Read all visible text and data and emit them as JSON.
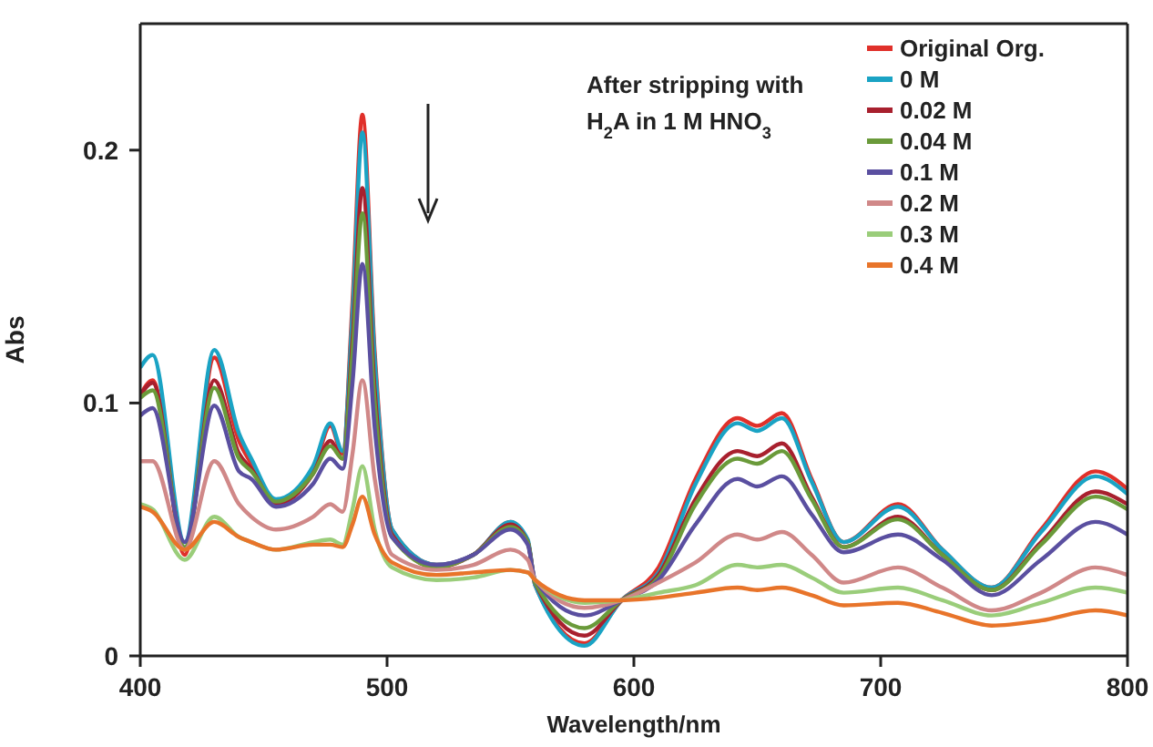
{
  "chart_data": {
    "type": "line",
    "xlabel": "Wavelength/nm",
    "ylabel": "Abs",
    "annotations": [
      "After stripping  with",
      "H$_{2}$A in 1 M HNO$_{3}$"
    ],
    "x": [
      400,
      405,
      418,
      430,
      440,
      445,
      455,
      470,
      477,
      482,
      486,
      490,
      495,
      502,
      520,
      535,
      550,
      557,
      560,
      580,
      595,
      610,
      625,
      642,
      650,
      660,
      672,
      685,
      707,
      725,
      745,
      765,
      787,
      800
    ],
    "series": [
      {
        "name": "Original Org.",
        "color": "#e0302a",
        "values": [
          0.103,
          0.109,
          0.04,
          0.118,
          0.085,
          0.076,
          0.061,
          0.073,
          0.091,
          0.08,
          0.14,
          0.214,
          0.12,
          0.05,
          0.036,
          0.04,
          0.053,
          0.045,
          0.028,
          0.005,
          0.022,
          0.035,
          0.07,
          0.094,
          0.091,
          0.096,
          0.07,
          0.045,
          0.06,
          0.042,
          0.027,
          0.05,
          0.073,
          0.066
        ]
      },
      {
        "name": "0  M",
        "color": "#1aa3c4",
        "values": [
          0.114,
          0.119,
          0.045,
          0.121,
          0.088,
          0.078,
          0.062,
          0.075,
          0.092,
          0.081,
          0.135,
          0.207,
          0.117,
          0.05,
          0.036,
          0.04,
          0.053,
          0.046,
          0.028,
          0.004,
          0.022,
          0.033,
          0.068,
          0.092,
          0.089,
          0.094,
          0.069,
          0.045,
          0.059,
          0.042,
          0.027,
          0.049,
          0.071,
          0.064
        ]
      },
      {
        "name": "0.02 M",
        "color": "#a8202e",
        "values": [
          0.103,
          0.108,
          0.042,
          0.109,
          0.08,
          0.074,
          0.06,
          0.072,
          0.085,
          0.078,
          0.125,
          0.185,
          0.105,
          0.048,
          0.035,
          0.04,
          0.052,
          0.045,
          0.029,
          0.008,
          0.022,
          0.032,
          0.062,
          0.081,
          0.079,
          0.084,
          0.063,
          0.043,
          0.055,
          0.04,
          0.026,
          0.045,
          0.065,
          0.06
        ]
      },
      {
        "name": "0.04 M",
        "color": "#6a9a3a",
        "values": [
          0.102,
          0.105,
          0.043,
          0.106,
          0.078,
          0.073,
          0.061,
          0.072,
          0.083,
          0.078,
          0.12,
          0.175,
          0.1,
          0.047,
          0.035,
          0.04,
          0.051,
          0.045,
          0.029,
          0.011,
          0.022,
          0.031,
          0.06,
          0.078,
          0.076,
          0.081,
          0.062,
          0.043,
          0.054,
          0.04,
          0.026,
          0.044,
          0.063,
          0.058
        ]
      },
      {
        "name": "0.1 M",
        "color": "#5a4fa0",
        "values": [
          0.095,
          0.098,
          0.045,
          0.099,
          0.073,
          0.07,
          0.059,
          0.068,
          0.078,
          0.074,
          0.108,
          0.155,
          0.09,
          0.047,
          0.036,
          0.04,
          0.05,
          0.044,
          0.03,
          0.016,
          0.022,
          0.03,
          0.052,
          0.07,
          0.067,
          0.071,
          0.056,
          0.041,
          0.048,
          0.038,
          0.024,
          0.038,
          0.053,
          0.048
        ]
      },
      {
        "name": "0.2 M",
        "color": "#d08888",
        "values": [
          0.077,
          0.077,
          0.042,
          0.077,
          0.06,
          0.055,
          0.05,
          0.055,
          0.06,
          0.057,
          0.08,
          0.109,
          0.07,
          0.04,
          0.034,
          0.036,
          0.042,
          0.038,
          0.03,
          0.019,
          0.022,
          0.029,
          0.037,
          0.048,
          0.046,
          0.049,
          0.04,
          0.029,
          0.035,
          0.027,
          0.018,
          0.025,
          0.035,
          0.032
        ]
      },
      {
        "name": "0.3 M",
        "color": "#9acd7a",
        "values": [
          0.06,
          0.058,
          0.038,
          0.055,
          0.047,
          0.045,
          0.042,
          0.045,
          0.046,
          0.044,
          0.058,
          0.075,
          0.05,
          0.035,
          0.03,
          0.031,
          0.034,
          0.033,
          0.03,
          0.021,
          0.022,
          0.025,
          0.028,
          0.036,
          0.035,
          0.036,
          0.031,
          0.025,
          0.027,
          0.022,
          0.016,
          0.021,
          0.027,
          0.025
        ]
      },
      {
        "name": "0.4 M",
        "color": "#e8742a",
        "values": [
          0.059,
          0.057,
          0.042,
          0.053,
          0.047,
          0.045,
          0.042,
          0.044,
          0.044,
          0.043,
          0.052,
          0.063,
          0.048,
          0.037,
          0.032,
          0.033,
          0.034,
          0.033,
          0.03,
          0.022,
          0.022,
          0.023,
          0.025,
          0.027,
          0.026,
          0.027,
          0.024,
          0.02,
          0.021,
          0.017,
          0.012,
          0.014,
          0.018,
          0.016
        ]
      }
    ],
    "xlim": [
      400,
      800
    ],
    "xticks": [
      400,
      500,
      600,
      700,
      800
    ],
    "ylim": [
      0,
      0.25
    ],
    "yticks": [
      0,
      0.1,
      0.2
    ],
    "grid": false,
    "legend": "top right",
    "marker": "none",
    "line_style": "solid"
  }
}
